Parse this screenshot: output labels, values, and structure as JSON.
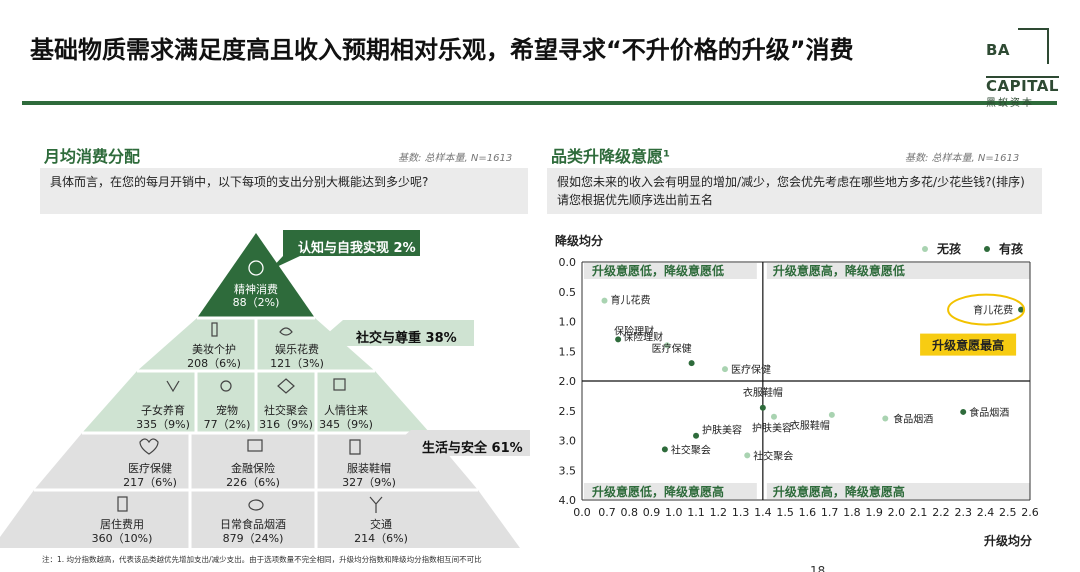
{
  "title": "基础物质需求满足度高且收入预期相对乐观，希望寻求“不升价格的升级”消费",
  "logo": {
    "line1": "BA",
    "line2": "CAPITAL",
    "line3": "黑蚁资本"
  },
  "left": {
    "section_title": "月均消费分配",
    "base": "基数: 总样本量, N=1613",
    "question": "具体而言，在您的每月开销中，以下每项的支出分别大概能达到多少呢?",
    "callouts": {
      "self": "认知与自我实现 2%",
      "social": "社交与尊重 38%",
      "safety": "生活与安全 61%"
    },
    "pyramid": {
      "top": {
        "label": "精神消费",
        "value": "88（2%)",
        "icon": "spirit-icon"
      },
      "row2": [
        {
          "label": "美妆个护",
          "value": "208（6%)",
          "icon": "cosmetics-icon"
        },
        {
          "label": "娱乐花费",
          "value": "121（3%)",
          "icon": "entertainment-icon"
        }
      ],
      "row3": [
        {
          "label": "子女养育",
          "value": "335（9%)",
          "icon": "children-icon"
        },
        {
          "label": "宠物",
          "value": "77（2%)",
          "icon": "pet-icon"
        },
        {
          "label": "社交聚会",
          "value": "316（9%)",
          "icon": "social-icon"
        },
        {
          "label": "人情往来",
          "value": "345（9%)",
          "icon": "gift-icon"
        }
      ],
      "row4": [
        {
          "label": "医疗保健",
          "value": "217（6%)",
          "icon": "health-icon"
        },
        {
          "label": "金融保险",
          "value": "226（6%)",
          "icon": "finance-icon"
        },
        {
          "label": "服装鞋帽",
          "value": "327（9%)",
          "icon": "clothing-icon"
        }
      ],
      "row5": [
        {
          "label": "居住费用",
          "value": "360（10%)",
          "icon": "housing-icon"
        },
        {
          "label": "日常食品烟酒",
          "value": "879（24%)",
          "icon": "food-icon"
        },
        {
          "label": "交通",
          "value": "214（6%)",
          "icon": "transport-icon"
        }
      ]
    }
  },
  "right": {
    "section_title": "品类升降级意愿¹",
    "base": "基数: 总样本量, N=1613",
    "question": "假如您未来的收入会有明显的增加/减少，您会优先考虑在哪些地方多花/少花些钱?(排序)请您根据优先顺序选出前五名",
    "highlight_label": "升级意愿最高"
  },
  "chart_data": {
    "type": "scatter",
    "xlabel": "升级均分",
    "ylabel": "降级均分",
    "xlim": [
      0.0,
      2.6
    ],
    "ylim": [
      4.0,
      0.0
    ],
    "x_ticks": [
      "0.0",
      "0.7",
      "0.8",
      "0.9",
      "1.0",
      "1.1",
      "1.2",
      "1.3",
      "1.4",
      "1.5",
      "1.6",
      "1.7",
      "1.8",
      "1.9",
      "2.0",
      "2.1",
      "2.2",
      "2.3",
      "2.4",
      "2.5",
      "2.6"
    ],
    "y_ticks": [
      "0.0",
      "0.5",
      "1.0",
      "1.5",
      "2.0",
      "2.5",
      "3.0",
      "3.5",
      "4.0"
    ],
    "divider": {
      "x": 1.4,
      "y": 2.0
    },
    "quadrants": {
      "top_left": "升级意愿低，降级意愿低",
      "top_right": "升级意愿高，降级意愿低",
      "bottom_left": "升级意愿低，降级意愿高",
      "bottom_right": "升级意愿高，降级意愿高"
    },
    "legend": {
      "position": "top-right"
    },
    "series": [
      {
        "name": "无孩",
        "color": "#a9d3b1",
        "points": [
          {
            "label": "育儿花费",
            "x": 0.63,
            "y": 0.65
          },
          {
            "label": "保险理财",
            "x": 0.97,
            "y": 1.4
          },
          {
            "label": "医疗保健",
            "x": 1.23,
            "y": 1.8
          },
          {
            "label": "护肤美容",
            "x": 1.45,
            "y": 2.6
          },
          {
            "label": "衣服鞋帽",
            "x": 1.71,
            "y": 2.57
          },
          {
            "label": "食品烟酒",
            "x": 1.95,
            "y": 2.63
          },
          {
            "label": "社交聚会",
            "x": 1.33,
            "y": 3.25
          }
        ]
      },
      {
        "name": "有孩",
        "color": "#2e6b3b",
        "points": [
          {
            "label": "育儿花费",
            "x": 2.56,
            "y": 0.8
          },
          {
            "label": "保险理财",
            "x": 0.75,
            "y": 1.3
          },
          {
            "label": "医疗保健",
            "x": 1.08,
            "y": 1.7
          },
          {
            "label": "衣服鞋帽",
            "x": 1.4,
            "y": 2.45
          },
          {
            "label": "护肤美容",
            "x": 1.1,
            "y": 2.92
          },
          {
            "label": "社交聚会",
            "x": 0.96,
            "y": 3.15
          },
          {
            "label": "食品烟酒",
            "x": 2.3,
            "y": 2.52
          }
        ]
      }
    ]
  },
  "note": "注：1. 均分指数越高，代表该品类越优先增加支出/减少支出。由于选项数量不完全相同，升级均分指数和降级均分指数相互间不可比",
  "page_number": "18"
}
